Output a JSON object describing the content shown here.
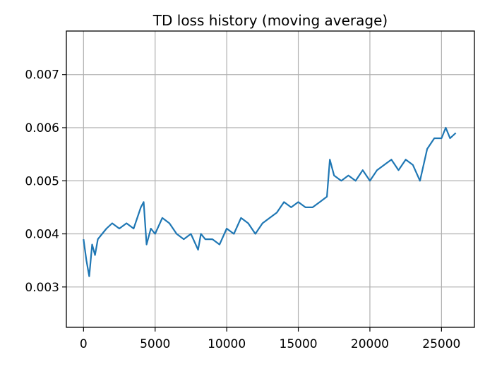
{
  "chart_data": {
    "type": "line",
    "title": "TD loss history (moving average)",
    "xlabel": "",
    "ylabel": "",
    "xlim": [
      -1200,
      27300
    ],
    "ylim": [
      0.00224,
      0.00782
    ],
    "x_ticks": [
      0,
      5000,
      10000,
      15000,
      20000,
      25000
    ],
    "x_tick_labels": [
      "0",
      "5000",
      "10000",
      "15000",
      "20000",
      "25000"
    ],
    "y_ticks": [
      0.003,
      0.004,
      0.005,
      0.006,
      0.007
    ],
    "y_tick_labels": [
      "0.003",
      "0.004",
      "0.005",
      "0.006",
      "0.007"
    ],
    "grid": true,
    "legend": "none",
    "colors": {
      "series": "#1f77b4"
    },
    "series": [
      {
        "color": "#1f77b4",
        "x": [
          0,
          200,
          400,
          600,
          800,
          1000,
          1300,
          1600,
          2000,
          2500,
          3000,
          3500,
          4000,
          4200,
          4400,
          4700,
          5000,
          5500,
          6000,
          6500,
          7000,
          7500,
          8000,
          8200,
          8500,
          9000,
          9500,
          10000,
          10500,
          11000,
          11500,
          12000,
          12500,
          13000,
          13500,
          14000,
          14500,
          15000,
          15500,
          16000,
          16500,
          17000,
          17200,
          17500,
          18000,
          18500,
          19000,
          19500,
          20000,
          20500,
          21000,
          21500,
          22000,
          22500,
          23000,
          23500,
          24000,
          24500,
          25000,
          25300,
          25600,
          26000
        ],
        "y": [
          0.0039,
          0.0035,
          0.0032,
          0.0038,
          0.0036,
          0.0039,
          0.004,
          0.0041,
          0.0042,
          0.0041,
          0.0042,
          0.0041,
          0.0045,
          0.0046,
          0.0038,
          0.0041,
          0.004,
          0.0043,
          0.0042,
          0.004,
          0.0039,
          0.004,
          0.0037,
          0.004,
          0.0039,
          0.0039,
          0.0038,
          0.0041,
          0.004,
          0.0043,
          0.0042,
          0.004,
          0.0042,
          0.0043,
          0.0044,
          0.0046,
          0.0045,
          0.0046,
          0.0045,
          0.0045,
          0.0046,
          0.0047,
          0.0054,
          0.0051,
          0.005,
          0.0051,
          0.005,
          0.0052,
          0.005,
          0.0052,
          0.0053,
          0.0054,
          0.0052,
          0.0054,
          0.0053,
          0.005,
          0.0056,
          0.0058,
          0.0058,
          0.006,
          0.0058,
          0.0059
        ]
      }
    ]
  }
}
